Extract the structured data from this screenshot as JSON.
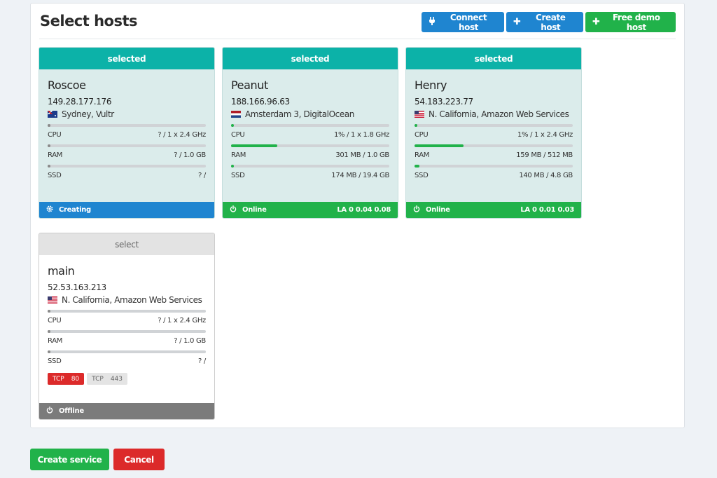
{
  "header": {
    "title": "Select hosts",
    "buttons": {
      "connect": "Connect host",
      "create": "Create host",
      "demo": "Free demo host"
    }
  },
  "hosts": [
    {
      "status_label": "selected",
      "name": "Roscoe",
      "ip": "149.28.177.176",
      "location": "Sydney, Vultr",
      "flag": "au",
      "cpu": {
        "label": "CPU",
        "value": "? / 1 x 2.4 GHz",
        "usage": 0
      },
      "ram": {
        "label": "RAM",
        "value": "? / 1.0 GB",
        "usage": 0
      },
      "ssd": {
        "label": "SSD",
        "value": "? /",
        "usage": 0
      },
      "state": "Creating",
      "load": "",
      "state_color": "#1f85d0"
    },
    {
      "status_label": "selected",
      "name": "Peanut",
      "ip": "188.166.96.63",
      "location": "Amsterdam 3, DigitalOcean",
      "flag": "nl",
      "cpu": {
        "label": "CPU",
        "value": "1% / 1 x 1.8 GHz",
        "usage": 0.01
      },
      "ram": {
        "label": "RAM",
        "value": "301 MB / 1.0 GB",
        "usage": 0.29
      },
      "ssd": {
        "label": "SSD",
        "value": "174 MB / 19.4 GB",
        "usage": 0.01
      },
      "state": "Online",
      "load": "LA 0 0.04 0.08",
      "state_color": "#21b24a"
    },
    {
      "status_label": "selected",
      "name": "Henry",
      "ip": "54.183.223.77",
      "location": "N. California, Amazon Web Services",
      "flag": "us",
      "cpu": {
        "label": "CPU",
        "value": "1% / 1 x 2.4 GHz",
        "usage": 0.01
      },
      "ram": {
        "label": "RAM",
        "value": "159 MB / 512 MB",
        "usage": 0.31
      },
      "ssd": {
        "label": "SSD",
        "value": "140 MB / 4.8 GB",
        "usage": 0.03
      },
      "state": "Online",
      "load": "LA 0 0.01 0.03",
      "state_color": "#21b24a"
    },
    {
      "status_label": "select",
      "name": "main",
      "ip": "52.53.163.213",
      "location": "N. California, Amazon Web Services",
      "flag": "us",
      "cpu": {
        "label": "CPU",
        "value": "? / 1 x 2.4 GHz",
        "usage": 0
      },
      "ram": {
        "label": "RAM",
        "value": "? / 1.0 GB",
        "usage": 0
      },
      "ssd": {
        "label": "SSD",
        "value": "? /",
        "usage": 0
      },
      "ports": [
        {
          "proto": "TCP",
          "port": "80",
          "state": "closed"
        },
        {
          "proto": "TCP",
          "port": "443",
          "state": "unknown"
        }
      ],
      "state": "Offline",
      "load": "",
      "state_color": "#7b7b7b"
    }
  ],
  "footer": {
    "create": "Create service",
    "cancel": "Cancel"
  },
  "icons": {
    "connect": "plug-icon",
    "create": "plus-icon",
    "creating": "gear-icon",
    "online": "power-icon"
  }
}
